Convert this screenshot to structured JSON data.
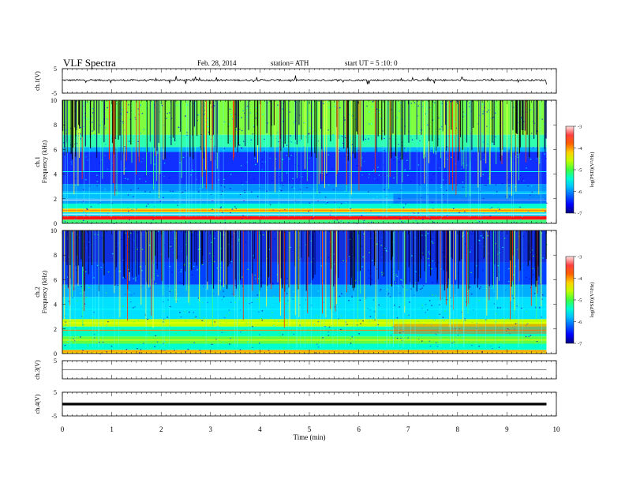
{
  "header": {
    "title": "VLF Spectra",
    "date": "Feb. 28, 2014",
    "station": "station= ATH",
    "start": "start UT = 5 :10: 0"
  },
  "colors": {
    "colormap": [
      "#000080",
      "#0000ff",
      "#00a0ff",
      "#00ffff",
      "#00ff80",
      "#80ff00",
      "#ffff00",
      "#ff8000",
      "#ff0000",
      "#ffc0c0",
      "#ffffff"
    ]
  },
  "chart_data": [
    {
      "type": "line",
      "panel": "ch1-waveform",
      "ylabel": "ch.1(V)",
      "ylim": [
        -5,
        5
      ],
      "yticks": [
        "5",
        "-5"
      ],
      "baseline": 0.3,
      "noise_amplitude": 0.35,
      "xlim": [
        0,
        10
      ]
    },
    {
      "type": "heatmap",
      "panel": "ch1-spectrogram",
      "ylabel": [
        "ch.1",
        "Frequency (kHz)"
      ],
      "ylim": [
        0,
        10
      ],
      "yticks": [
        "0",
        "2",
        "4",
        "6",
        "8",
        "10"
      ],
      "data_end_min": 9.8,
      "colorbar": {
        "label": "log(PSD)(V²/Hz)",
        "range": [
          -7,
          -3
        ],
        "ticks": [
          "-3",
          "-4",
          "-5",
          "-6",
          "-7"
        ]
      }
    },
    {
      "type": "heatmap",
      "panel": "ch2-spectrogram",
      "ylabel": [
        "ch.2",
        "Frequency (kHz)"
      ],
      "ylim": [
        0,
        10
      ],
      "yticks": [
        "0",
        "2",
        "4",
        "6",
        "8",
        "10"
      ],
      "data_end_min": 9.8,
      "colorbar": {
        "label": "log(PSD)(V²/Hz)",
        "range": [
          -7,
          -3
        ],
        "ticks": [
          "-3",
          "-4",
          "-5",
          "-6",
          "-7"
        ]
      }
    },
    {
      "type": "line",
      "panel": "ch3-waveform",
      "ylabel": "ch.3(V)",
      "ylim": [
        -5,
        5
      ],
      "yticks": [
        "5"
      ],
      "baseline": 0,
      "xlim": [
        0,
        10
      ]
    },
    {
      "type": "line",
      "panel": "ch4-waveform",
      "ylabel": "ch.4(V)",
      "ylim": [
        -5,
        5
      ],
      "yticks": [
        "5",
        "-5"
      ],
      "baseline": 0,
      "xlim": [
        0,
        10
      ]
    }
  ],
  "xaxis": {
    "label": "Time (min)",
    "ticks": [
      "0",
      "1",
      "2",
      "3",
      "4",
      "5",
      "6",
      "7",
      "8",
      "9",
      "10"
    ]
  }
}
